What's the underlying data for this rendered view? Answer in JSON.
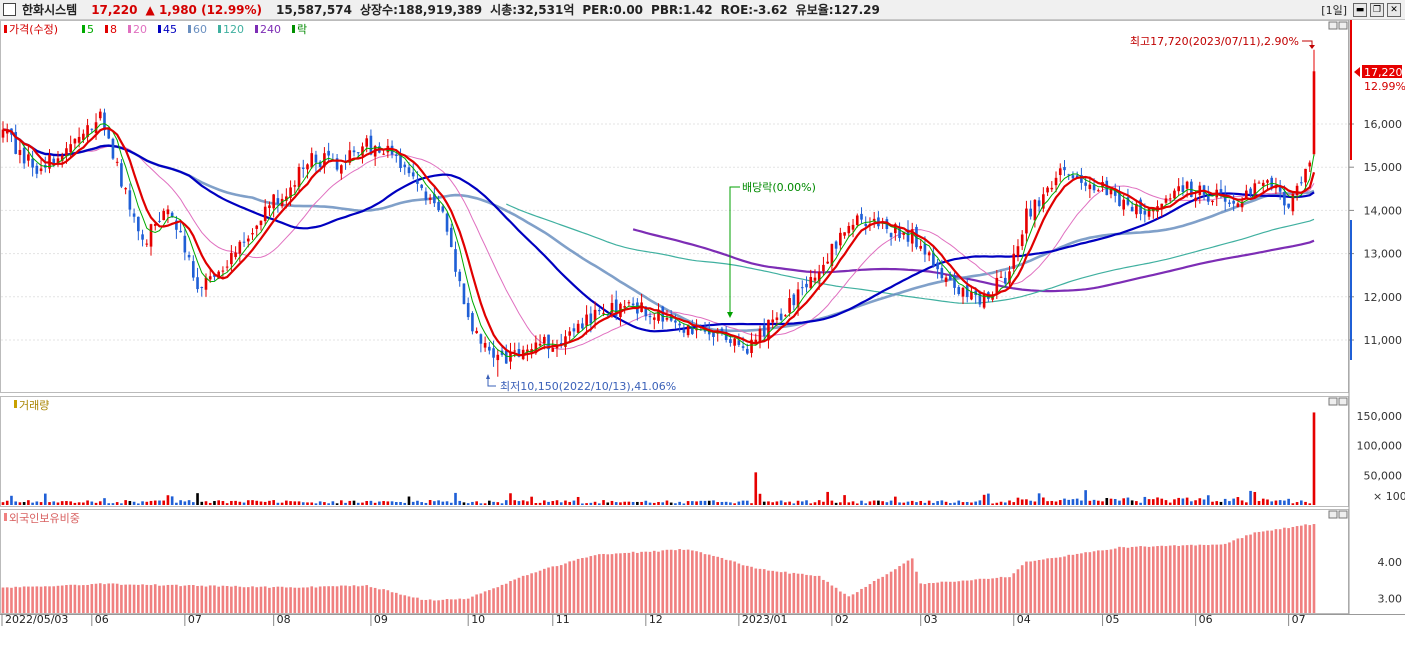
{
  "header": {
    "name": "한화시스템",
    "price": "17,220",
    "change_arrow": "▲",
    "change": "1,980",
    "change_pct": "(12.99%)",
    "volume": "15,587,574",
    "stats": [
      "상장수:188,919,389",
      "시총:32,531억",
      "PER:0.00",
      "PBR:1.42",
      "ROE:-3.62",
      "유보율:127.29"
    ],
    "period": "[1일]"
  },
  "price_panel": {
    "legend": {
      "main": "가격(수정)",
      "ma": [
        {
          "label": "5",
          "color": "#00aa00"
        },
        {
          "label": "8",
          "color": "#e00000"
        },
        {
          "label": "20",
          "color": "#e070c0"
        },
        {
          "label": "45",
          "color": "#0000c0"
        },
        {
          "label": "60",
          "color": "#6a8fc0"
        },
        {
          "label": "120",
          "color": "#40b0a0"
        },
        {
          "label": "240",
          "color": "#7d2db5"
        }
      ],
      "drop": "락"
    },
    "yticks": [
      "16,000",
      "15,000",
      "14,000",
      "13,000",
      "12,000",
      "11,000"
    ],
    "current_label": "17,220",
    "current_pct": "12.99%",
    "high_annotation": "최고17,720(2023/07/11),2.90%",
    "low_annotation": "최저10,150(2022/10/13),41.06%",
    "dividend_annotation": "배당락(0.00%)"
  },
  "volume_panel": {
    "title": "거래량",
    "yticks": [
      "150,000",
      "100,000",
      "50,000"
    ],
    "unit": "× 100"
  },
  "foreign_panel": {
    "title": "외국인보유비중",
    "yticks": [
      "4.00",
      "3.00"
    ]
  },
  "x_axis_labels": [
    "2022/05/03",
    "06",
    "07",
    "08",
    "09",
    "10",
    "11",
    "12",
    "2023/01",
    "02",
    "03",
    "04",
    "05",
    "06",
    "07"
  ],
  "colors": {
    "up": "#e60000",
    "down": "#1f5fd6",
    "foreign_bar": "#f08080",
    "accent": "#d40000"
  },
  "chart_data": [
    {
      "type": "candlestick",
      "title": "가격(수정)",
      "x_range": [
        "2022/05/03",
        "2023/07/11"
      ],
      "ylim": [
        10150,
        17720
      ],
      "key_prices": {
        "open_start": 15700,
        "low": 10150,
        "low_date": "2022/10/13",
        "high": 17720,
        "high_date": "2023/07/11",
        "last": 17220
      },
      "anchors": [
        [
          "2022/05/03",
          15800
        ],
        [
          "2022/05/13",
          14900
        ],
        [
          "2022/05/25",
          15600
        ],
        [
          "2022/06/03",
          16200
        ],
        [
          "2022/06/17",
          13200
        ],
        [
          "2022/06/27",
          14200
        ],
        [
          "2022/07/06",
          12200
        ],
        [
          "2022/07/14",
          12600
        ],
        [
          "2022/07/26",
          13800
        ],
        [
          "2022/08/04",
          14500
        ],
        [
          "2022/08/12",
          15200
        ],
        [
          "2022/08/22",
          15100
        ],
        [
          "2022/08/31",
          15500
        ],
        [
          "2022/09/08",
          15300
        ],
        [
          "2022/09/19",
          14400
        ],
        [
          "2022/09/26",
          14000
        ],
        [
          "2022/10/04",
          11400
        ],
        [
          "2022/10/13",
          10500
        ],
        [
          "2022/10/24",
          10900
        ],
        [
          "2022/11/03",
          10900
        ],
        [
          "2022/11/14",
          11500
        ],
        [
          "2022/11/24",
          11800
        ],
        [
          "2022/12/02",
          11700
        ],
        [
          "2022/12/12",
          11400
        ],
        [
          "2022/12/21",
          11200
        ],
        [
          "2022/12/28",
          11000
        ],
        [
          "2023/01/04",
          10800
        ],
        [
          "2023/01/16",
          11600
        ],
        [
          "2023/01/27",
          12700
        ],
        [
          "2023/02/08",
          13800
        ],
        [
          "2023/02/17",
          13600
        ],
        [
          "2023/02/28",
          13400
        ],
        [
          "2023/03/10",
          12400
        ],
        [
          "2023/03/21",
          11900
        ],
        [
          "2023/03/30",
          12400
        ],
        [
          "2023/04/06",
          13900
        ],
        [
          "2023/04/18",
          14800
        ],
        [
          "2023/04/27",
          14700
        ],
        [
          "2023/05/08",
          14200
        ],
        [
          "2023/05/17",
          14000
        ],
        [
          "2023/05/26",
          14600
        ],
        [
          "2023/06/07",
          14300
        ],
        [
          "2023/06/15",
          14300
        ],
        [
          "2023/06/26",
          14700
        ],
        [
          "2023/07/03",
          14000
        ],
        [
          "2023/07/10",
          15200
        ],
        [
          "2023/07/11",
          17220
        ]
      ],
      "moving_averages": [
        5,
        8,
        20,
        45,
        60,
        120,
        240
      ]
    },
    {
      "type": "bar",
      "title": "거래량",
      "unit": "× 100",
      "ylim": [
        0,
        160000
      ],
      "peaks": [
        [
          "2023/01/06",
          55000
        ],
        [
          "2023/07/11",
          155875
        ]
      ]
    },
    {
      "type": "bar",
      "title": "외국인보유비중",
      "ylim": [
        2.6,
        5.4
      ],
      "anchors": [
        [
          "2022/05/03",
          3.3
        ],
        [
          "2022/06/03",
          3.4
        ],
        [
          "2022/07/05",
          3.35
        ],
        [
          "2022/08/04",
          3.3
        ],
        [
          "2022/08/31",
          3.35
        ],
        [
          "2022/09/20",
          2.95
        ],
        [
          "2022/10/04",
          3.0
        ],
        [
          "2022/10/25",
          3.7
        ],
        [
          "2022/11/15",
          4.2
        ],
        [
          "2022/12/15",
          4.35
        ],
        [
          "2023/01/09",
          3.8
        ],
        [
          "2023/01/27",
          3.6
        ],
        [
          "2023/02/07",
          3.05
        ],
        [
          "2023/02/28",
          4.1
        ],
        [
          "2023/03/02",
          3.4
        ],
        [
          "2023/03/31",
          3.6
        ],
        [
          "2023/04/06",
          4.0
        ],
        [
          "2023/05/08",
          4.4
        ],
        [
          "2023/06/12",
          4.5
        ],
        [
          "2023/06/21",
          4.8
        ],
        [
          "2023/07/11",
          5.05
        ]
      ]
    }
  ]
}
